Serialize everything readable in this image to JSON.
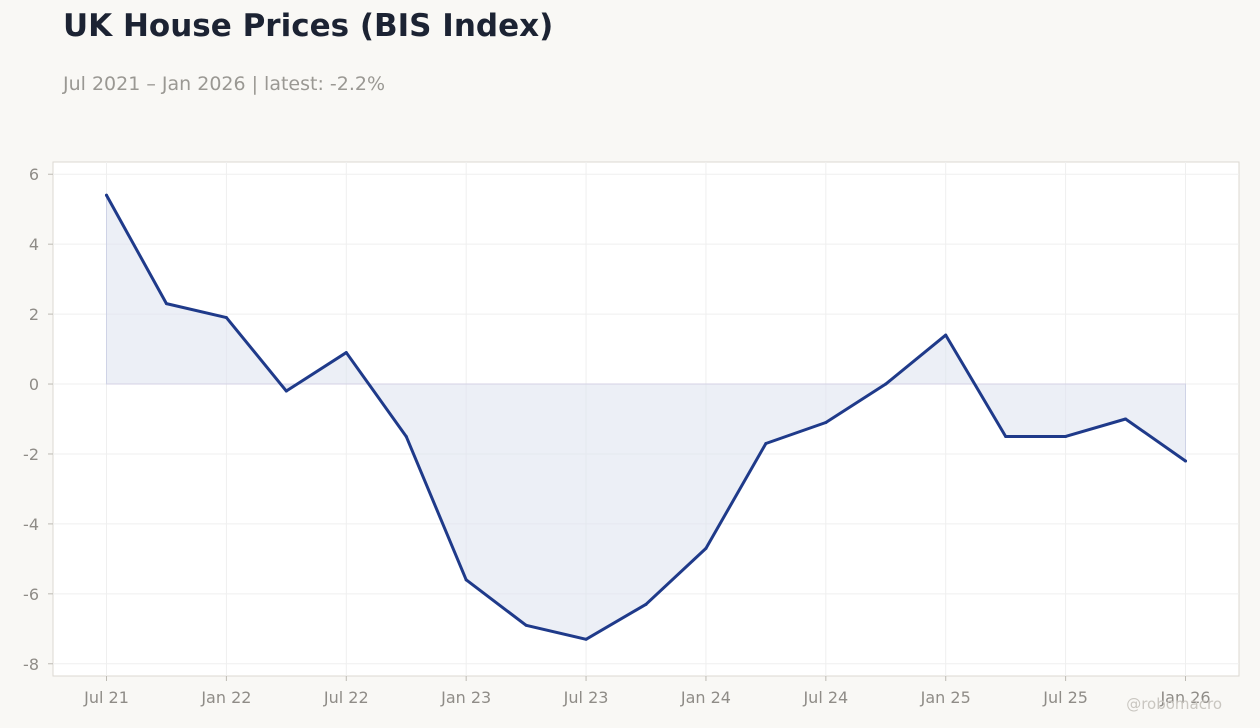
{
  "header": {
    "title": "UK House Prices (BIS Index)",
    "subtitle": "Jul 2021 – Jan 2026 | latest: -2.2%"
  },
  "watermark": "@robomacro",
  "chart_data": {
    "type": "area",
    "x": [
      "Jul 2021",
      "Oct 2021",
      "Jan 2022",
      "Apr 2022",
      "Jul 2022",
      "Oct 2022",
      "Jan 2023",
      "Apr 2023",
      "Jul 2023",
      "Oct 2023",
      "Jan 2024",
      "Apr 2024",
      "Jul 2024",
      "Oct 2024",
      "Jan 2025",
      "Apr 2025",
      "Jul 2025",
      "Oct 2025",
      "Jan 2026"
    ],
    "values": [
      5.4,
      2.3,
      1.9,
      -0.2,
      0.9,
      -1.5,
      -5.6,
      -6.9,
      -7.3,
      -6.3,
      -4.7,
      -1.7,
      -1.1,
      0.0,
      1.4,
      -1.5,
      -1.5,
      -1.0,
      -2.2
    ],
    "x_tick_labels": [
      "Jul 21",
      "Jan 22",
      "Jul 22",
      "Jan 23",
      "Jul 23",
      "Jan 24",
      "Jul 24",
      "Jan 25",
      "Jul 25",
      "Jan 26"
    ],
    "y_tick_labels": [
      "6",
      "4",
      "2",
      "0",
      "-2",
      "-4",
      "-6",
      "-8"
    ],
    "y_ticks": [
      6,
      4,
      2,
      0,
      -2,
      -4,
      -6,
      -8
    ],
    "ylim": [
      -8.35,
      6.35
    ],
    "grid": true,
    "line_color": "#1f3a8a",
    "fill_color": "#dde1ee"
  }
}
